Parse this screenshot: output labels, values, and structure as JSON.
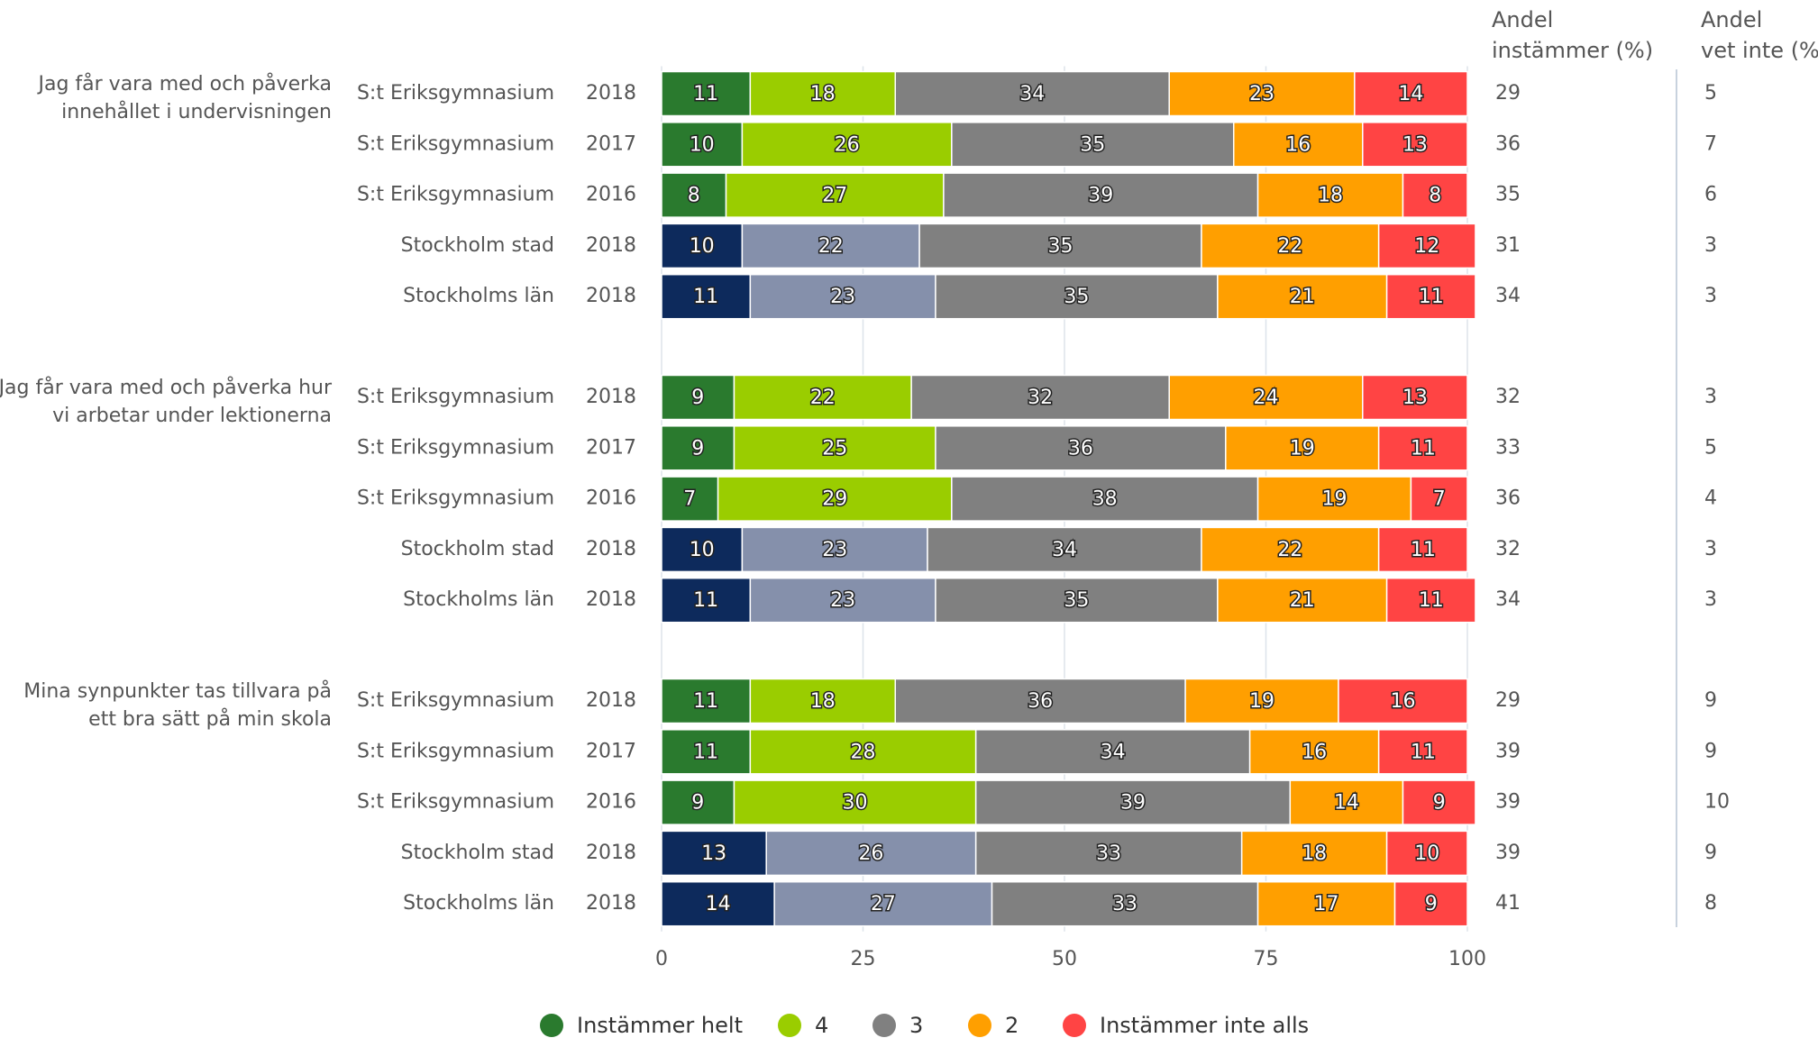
{
  "chart_data": {
    "type": "stacked-bar-horizontal",
    "xlim": [
      0,
      100
    ],
    "xticks": [
      0,
      25,
      50,
      75,
      100
    ],
    "grid": true,
    "groups": [
      "Jag får vara med och påverka innehållet i undervisningen",
      "Jag får vara med och påverka hur vi arbetar under lektionerna",
      "Mina synpunkter tas tillvara på ett bra sätt på min skola"
    ],
    "rows": [
      {
        "school": "S:t Eriksgymnasium",
        "year": "2018"
      },
      {
        "school": "S:t Eriksgymnasium",
        "year": "2017"
      },
      {
        "school": "S:t Eriksgymnasium",
        "year": "2016"
      },
      {
        "school": "Stockholm stad",
        "year": "2018"
      },
      {
        "school": "Stockholms län",
        "year": "2018"
      },
      {
        "school": "S:t Eriksgymnasium",
        "year": "2018"
      },
      {
        "school": "S:t Eriksgymnasium",
        "year": "2017"
      },
      {
        "school": "S:t Eriksgymnasium",
        "year": "2016"
      },
      {
        "school": "Stockholm stad",
        "year": "2018"
      },
      {
        "school": "Stockholms län",
        "year": "2018"
      },
      {
        "school": "S:t Eriksgymnasium",
        "year": "2018"
      },
      {
        "school": "S:t Eriksgymnasium",
        "year": "2017"
      },
      {
        "school": "S:t Eriksgymnasium",
        "year": "2016"
      },
      {
        "school": "Stockholm stad",
        "year": "2018"
      },
      {
        "school": "Stockholms län",
        "year": "2018"
      }
    ],
    "series": [
      {
        "name": "Instämmer helt",
        "color": "#2a7a2e",
        "comparison_color": "#0d2a5c",
        "values": [
          11,
          10,
          8,
          10,
          11,
          9,
          9,
          7,
          10,
          11,
          11,
          11,
          9,
          13,
          14
        ]
      },
      {
        "name": "4",
        "color": "#9acd00",
        "comparison_color": "#8590ab",
        "values": [
          18,
          26,
          27,
          22,
          23,
          22,
          25,
          29,
          23,
          23,
          18,
          28,
          30,
          26,
          27
        ]
      },
      {
        "name": "3",
        "color": "#808080",
        "values": [
          34,
          35,
          39,
          35,
          35,
          32,
          36,
          38,
          34,
          35,
          36,
          34,
          39,
          33,
          33
        ]
      },
      {
        "name": "2",
        "color": "#ff9f00",
        "values": [
          23,
          16,
          18,
          22,
          21,
          24,
          19,
          19,
          22,
          21,
          19,
          16,
          14,
          18,
          17
        ]
      },
      {
        "name": "Instämmer inte alls",
        "color": "#ff4444",
        "values": [
          14,
          13,
          8,
          12,
          11,
          13,
          11,
          7,
          11,
          11,
          16,
          11,
          9,
          10,
          9
        ]
      }
    ],
    "columns": [
      {
        "header": [
          "Andel",
          "instämmer (%)"
        ],
        "values": [
          29,
          36,
          35,
          31,
          34,
          32,
          33,
          36,
          32,
          34,
          29,
          39,
          39,
          39,
          41
        ]
      },
      {
        "header": [
          "Andel",
          "vet inte (%)"
        ],
        "values": [
          5,
          7,
          6,
          3,
          3,
          3,
          5,
          4,
          3,
          3,
          9,
          9,
          10,
          9,
          8
        ]
      }
    ]
  }
}
